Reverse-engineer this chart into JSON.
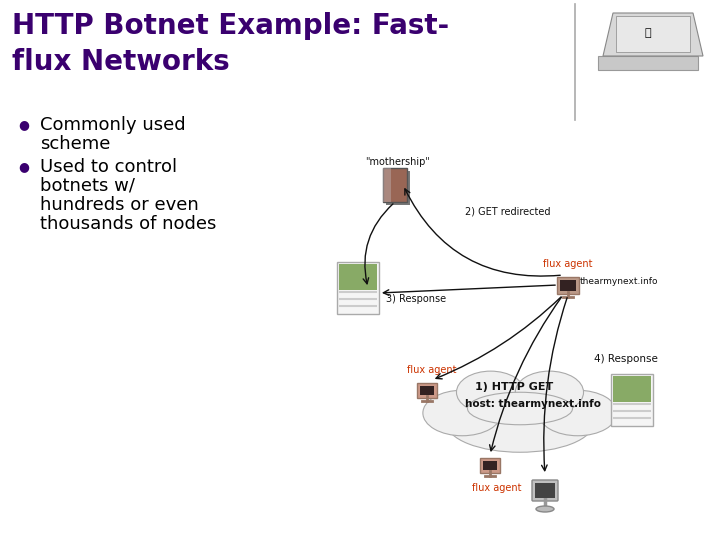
{
  "title_line1": "HTTP Botnet Example: Fast-",
  "title_line2": "flux Networks",
  "title_color": "#3a006f",
  "bullet1_line1": "Commonly used",
  "bullet1_line2": "scheme",
  "bullet2_line1": "Used to control",
  "bullet2_line2": "botnets w/",
  "bullet2_line3": "hundreds or even",
  "bullet2_line4": "thousands of nodes",
  "background_color": "#ffffff",
  "text_color": "#000000",
  "bullet_color": "#3a006f",
  "divider_color": "#aaaaaa",
  "font_size_title": 20,
  "font_size_body": 13,
  "diagram_label_mothership": "\"mothership\"",
  "diagram_label_get_redirected": "2) GET redirected",
  "diagram_label_flux_agent1": "flux agent",
  "diagram_label_thearmynext": "thearmynext.info",
  "diagram_label_response3": "3) Response",
  "diagram_label_flux_agent2": "flux agent",
  "diagram_label_flux_agent3": "flux agent",
  "diagram_label_http_get": "1) HTTP GET",
  "diagram_label_host": "host: thearmynext.info",
  "diagram_label_response4": "4) Response",
  "diagram_red_color": "#cc3300",
  "diagram_black_color": "#111111",
  "diagram_arrow_color": "#111111",
  "cloud_edge_color": "#aaaaaa",
  "cloud_face_color": "#f0f0f0",
  "server_color": "#996655",
  "flux_agent_color": "#cc8877",
  "client_color": "#bbbbbb",
  "webpage_green": "#88aa66",
  "webpage_bg": "#ddeedd"
}
